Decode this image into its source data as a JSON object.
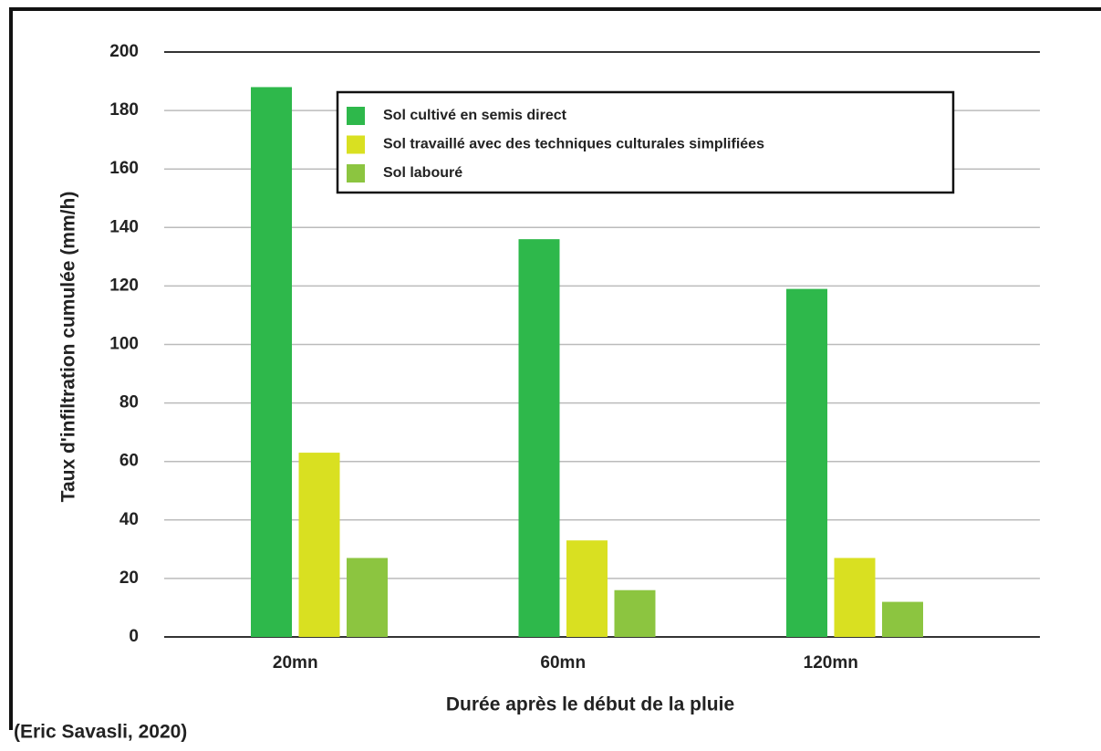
{
  "chart_data": {
    "type": "bar",
    "y_label": "Taux d'infiltration cumulée (mm/h)",
    "x_label": "Durée après le début de la pluie",
    "source": "(Eric Savasli, 2020)",
    "categories": [
      "20mn",
      "60mn",
      "120mn"
    ],
    "series": [
      {
        "name": "Sol cultivé en semis direct",
        "color": "#2eb84b",
        "values": [
          188,
          136,
          119
        ]
      },
      {
        "name": "Sol travaillé avec des techniques culturales simplifiées",
        "color": "#d9e021",
        "values": [
          63,
          33,
          27
        ]
      },
      {
        "name": "Sol labouré",
        "color": "#8cc540",
        "values": [
          27,
          16,
          12
        ]
      }
    ],
    "ylim": [
      0,
      200
    ],
    "yticks": [
      0,
      20,
      40,
      60,
      80,
      100,
      120,
      140,
      160,
      180,
      200
    ],
    "grid": true
  }
}
